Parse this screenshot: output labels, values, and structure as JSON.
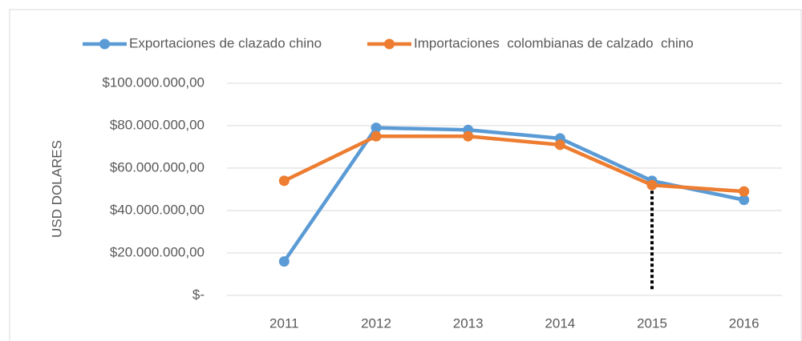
{
  "chart_data": {
    "type": "line",
    "y_label": "USD DOLARES",
    "categories": [
      "2011",
      "2012",
      "2013",
      "2014",
      "2015",
      "2016"
    ],
    "series": [
      {
        "name": "Exportaciones de clazado chino",
        "color": "#5b9bd5",
        "values": [
          16000000,
          79000000,
          78000000,
          74000000,
          54000000,
          45000000
        ]
      },
      {
        "name": "Importaciones  colombianas de calzado  chino",
        "color": "#ed7d31",
        "values": [
          54000000,
          75000000,
          75000000,
          71000000,
          52000000,
          49000000
        ]
      }
    ],
    "ylim": [
      0,
      100000000
    ],
    "yticks": [
      {
        "value": 0,
        "label": "$-"
      },
      {
        "value": 20000000,
        "label": "$20.000.000,00"
      },
      {
        "value": 40000000,
        "label": "$40.000.000,00"
      },
      {
        "value": 60000000,
        "label": "$60.000.000,00"
      },
      {
        "value": 80000000,
        "label": "$80.000.000,00"
      },
      {
        "value": 100000000,
        "label": "$100.000.000,00"
      }
    ],
    "grid": true,
    "legend": "top"
  }
}
